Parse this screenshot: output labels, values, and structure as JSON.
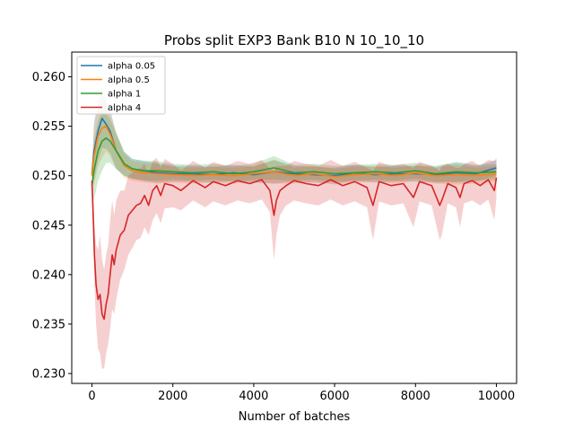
{
  "chart_data": {
    "type": "line",
    "title": "Probs split EXP3 Bank B10 N 10_10_10",
    "xlabel": "Number of batches",
    "ylabel": "",
    "xlim": [
      -500,
      10500
    ],
    "ylim": [
      0.229,
      0.2625
    ],
    "xticks": [
      0,
      2000,
      4000,
      6000,
      8000,
      10000
    ],
    "xtick_labels": [
      "0",
      "2000",
      "4000",
      "6000",
      "8000",
      "10000"
    ],
    "yticks": [
      0.23,
      0.235,
      0.24,
      0.245,
      0.25,
      0.255,
      0.26
    ],
    "ytick_labels": [
      "0.230",
      "0.235",
      "0.240",
      "0.245",
      "0.250",
      "0.255",
      "0.260"
    ],
    "grid": false,
    "legend_position": "top-left",
    "shaded_band": "confidence band around each line",
    "series": [
      {
        "name": "alpha 0.05",
        "color": "#1f77b4",
        "x": [
          0,
          50,
          150,
          250,
          350,
          450,
          600,
          800,
          1000,
          1300,
          1600,
          2000,
          2500,
          3000,
          3500,
          4000,
          4500,
          5000,
          5500,
          6000,
          6500,
          7000,
          7500,
          8000,
          8500,
          9000,
          9500,
          10000
        ],
        "y": [
          0.2502,
          0.2525,
          0.2545,
          0.2558,
          0.2552,
          0.2545,
          0.2525,
          0.2512,
          0.2507,
          0.2505,
          0.2503,
          0.2502,
          0.2502,
          0.2501,
          0.2503,
          0.2501,
          0.2504,
          0.2502,
          0.2501,
          0.25,
          0.2503,
          0.2501,
          0.2502,
          0.2502,
          0.2501,
          0.2503,
          0.2502,
          0.2508
        ],
        "band": [
          0.0006,
          0.003,
          0.003,
          0.003,
          0.0025,
          0.0022,
          0.0018,
          0.0012,
          0.001,
          0.001,
          0.001,
          0.0008,
          0.0008,
          0.0008,
          0.0008,
          0.0008,
          0.0012,
          0.0008,
          0.0008,
          0.0008,
          0.0008,
          0.0008,
          0.0008,
          0.0008,
          0.0008,
          0.001,
          0.0008,
          0.0008
        ]
      },
      {
        "name": "alpha 0.5",
        "color": "#ff7f0e",
        "x": [
          0,
          50,
          150,
          250,
          350,
          450,
          600,
          800,
          1000,
          1300,
          1600,
          2000,
          2500,
          3000,
          3500,
          4000,
          4500,
          5000,
          5500,
          6000,
          6500,
          7000,
          7500,
          8000,
          8500,
          9000,
          9500,
          10000
        ],
        "y": [
          0.25,
          0.252,
          0.254,
          0.2548,
          0.255,
          0.2542,
          0.2525,
          0.251,
          0.2505,
          0.2503,
          0.2502,
          0.2501,
          0.25,
          0.2501,
          0.25,
          0.2502,
          0.2504,
          0.25,
          0.2502,
          0.2499,
          0.2501,
          0.2502,
          0.25,
          0.2503,
          0.25,
          0.2501,
          0.25,
          0.2502
        ],
        "band": [
          0.0006,
          0.003,
          0.003,
          0.003,
          0.0025,
          0.0022,
          0.0018,
          0.0012,
          0.001,
          0.001,
          0.001,
          0.0008,
          0.0008,
          0.0008,
          0.0008,
          0.0008,
          0.0012,
          0.0008,
          0.0008,
          0.0008,
          0.0008,
          0.0008,
          0.0008,
          0.0008,
          0.0008,
          0.001,
          0.0008,
          0.0008
        ]
      },
      {
        "name": "alpha 1",
        "color": "#2ca02c",
        "x": [
          0,
          50,
          150,
          250,
          350,
          450,
          600,
          800,
          1000,
          1300,
          1600,
          2000,
          2500,
          3000,
          3500,
          4000,
          4500,
          5000,
          5500,
          6000,
          6500,
          7000,
          7500,
          8000,
          8500,
          9000,
          9500,
          10000
        ],
        "y": [
          0.249,
          0.2505,
          0.2525,
          0.2535,
          0.2538,
          0.2535,
          0.2525,
          0.2512,
          0.2507,
          0.2505,
          0.2505,
          0.2504,
          0.2503,
          0.2504,
          0.2502,
          0.2504,
          0.2508,
          0.2503,
          0.2504,
          0.2502,
          0.2503,
          0.2504,
          0.2503,
          0.2505,
          0.2502,
          0.2504,
          0.2503,
          0.2504
        ],
        "band": [
          0.0008,
          0.003,
          0.003,
          0.003,
          0.0025,
          0.0022,
          0.0018,
          0.0012,
          0.001,
          0.001,
          0.001,
          0.0008,
          0.0008,
          0.0008,
          0.0008,
          0.0008,
          0.0012,
          0.0008,
          0.0008,
          0.0008,
          0.0008,
          0.0008,
          0.0008,
          0.0008,
          0.0008,
          0.001,
          0.0008,
          0.0008
        ]
      },
      {
        "name": "alpha 4",
        "color": "#d62728",
        "x": [
          0,
          30,
          60,
          100,
          150,
          200,
          250,
          300,
          350,
          400,
          450,
          500,
          550,
          600,
          700,
          800,
          900,
          1000,
          1100,
          1200,
          1300,
          1400,
          1500,
          1600,
          1700,
          1800,
          2000,
          2200,
          2500,
          2800,
          3000,
          3300,
          3600,
          3900,
          4200,
          4400,
          4500,
          4560,
          4650,
          4800,
          5000,
          5300,
          5600,
          5900,
          6200,
          6500,
          6800,
          6950,
          7100,
          7400,
          7700,
          7950,
          8100,
          8400,
          8600,
          8650,
          8800,
          9000,
          9100,
          9200,
          9400,
          9600,
          9800,
          9950,
          10000
        ],
        "y": [
          0.2495,
          0.246,
          0.242,
          0.239,
          0.2375,
          0.238,
          0.236,
          0.2355,
          0.237,
          0.238,
          0.24,
          0.242,
          0.241,
          0.2425,
          0.244,
          0.2445,
          0.246,
          0.2465,
          0.247,
          0.2472,
          0.248,
          0.247,
          0.2485,
          0.249,
          0.248,
          0.2492,
          0.249,
          0.2485,
          0.2495,
          0.2488,
          0.2494,
          0.249,
          0.2495,
          0.2492,
          0.2496,
          0.2485,
          0.246,
          0.2475,
          0.2485,
          0.249,
          0.2495,
          0.2492,
          0.249,
          0.2496,
          0.249,
          0.2494,
          0.2488,
          0.247,
          0.2494,
          0.249,
          0.2492,
          0.2478,
          0.2494,
          0.249,
          0.247,
          0.2475,
          0.2492,
          0.2488,
          0.2478,
          0.2492,
          0.2495,
          0.249,
          0.2496,
          0.2485,
          0.2498
        ],
        "band": [
          0.001,
          0.002,
          0.003,
          0.004,
          0.005,
          0.006,
          0.0055,
          0.005,
          0.005,
          0.005,
          0.0055,
          0.0055,
          0.005,
          0.005,
          0.0045,
          0.004,
          0.004,
          0.0038,
          0.0035,
          0.0035,
          0.0032,
          0.003,
          0.003,
          0.0028,
          0.0028,
          0.0025,
          0.0022,
          0.002,
          0.002,
          0.002,
          0.002,
          0.002,
          0.002,
          0.002,
          0.002,
          0.0022,
          0.0045,
          0.0035,
          0.0025,
          0.002,
          0.002,
          0.002,
          0.002,
          0.002,
          0.002,
          0.002,
          0.002,
          0.0035,
          0.002,
          0.002,
          0.002,
          0.003,
          0.002,
          0.002,
          0.0035,
          0.0035,
          0.002,
          0.002,
          0.003,
          0.002,
          0.002,
          0.002,
          0.002,
          0.003,
          0.002
        ]
      }
    ]
  }
}
